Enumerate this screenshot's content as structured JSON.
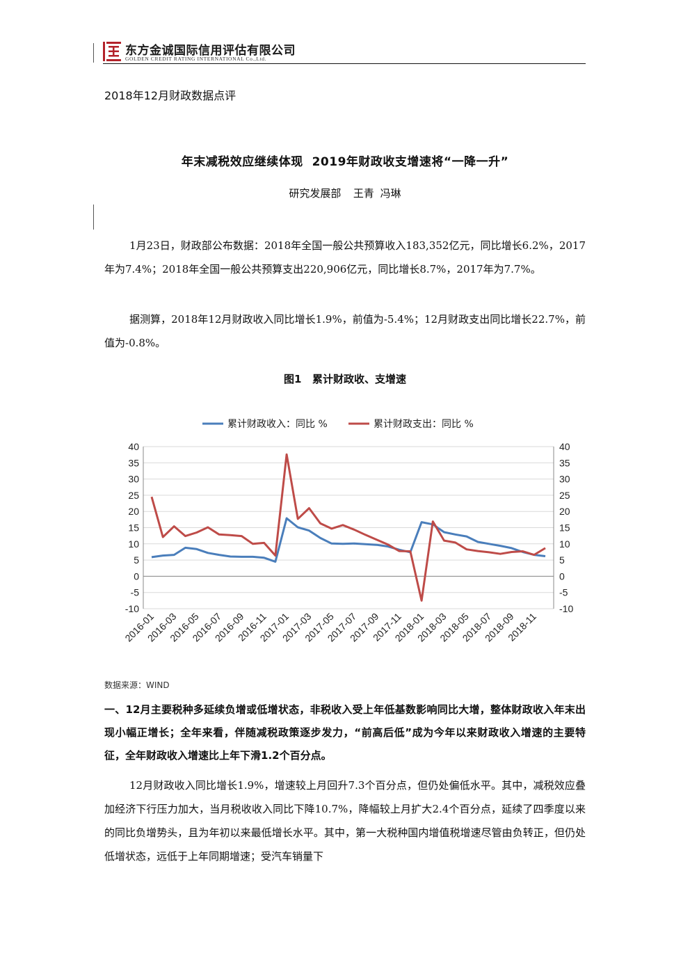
{
  "header": {
    "company_cn": "东方金诚国际信用评估有限公司",
    "company_en": "GOLDEN CREDIT RATING INTERNATIONAL Co.,Ltd.",
    "logo_color": "#b3222a"
  },
  "report_label": "2018年12月财政数据点评",
  "title": "年末减税效应继续体现  2019年财政收支增速将“一降一升”",
  "authors": "研究发展部  王青 冯琳",
  "paragraphs": [
    "1月23日，财政部公布数据：2018年全国一般公共预算收入183,352亿元，同比增长6.2%，2017年为7.4%；2018年全国一般公共预算支出220,906亿元，同比增长8.7%，2017年为7.7%。",
    "据测算，2018年12月财政收入同比增长1.9%，前值为-5.4%；12月财政支出同比增长22.7%，前值为-0.8%。"
  ],
  "figure": {
    "title": "图1   累计财政收、支增速",
    "source": "数据来源：WIND"
  },
  "chart_data": {
    "type": "line",
    "title": "",
    "xlabel": "",
    "ylabel": "",
    "ylim": [
      -10,
      40
    ],
    "yticks": [
      40,
      35,
      30,
      25,
      20,
      15,
      10,
      5,
      0,
      -5,
      -10
    ],
    "legend_position": "top",
    "grid": "horizontal",
    "x": [
      "2016-01",
      "2016-02",
      "2016-03",
      "2016-04",
      "2016-05",
      "2016-06",
      "2016-07",
      "2016-08",
      "2016-09",
      "2016-10",
      "2016-11",
      "2016-12",
      "2017-01",
      "2017-02",
      "2017-03",
      "2017-04",
      "2017-05",
      "2017-06",
      "2017-07",
      "2017-08",
      "2017-09",
      "2017-10",
      "2017-11",
      "2017-12",
      "2018-01",
      "2018-02",
      "2018-03",
      "2018-04",
      "2018-05",
      "2018-06",
      "2018-07",
      "2018-08",
      "2018-09",
      "2018-10",
      "2018-11",
      "2018-12"
    ],
    "xtick_labels": [
      "2016-01",
      "2016-03",
      "2016-05",
      "2016-07",
      "2016-09",
      "2016-11",
      "2017-01",
      "2017-03",
      "2017-05",
      "2017-07",
      "2017-09",
      "2017-11",
      "2018-01",
      "2018-03",
      "2018-05",
      "2018-07",
      "2018-09",
      "2018-11"
    ],
    "series": [
      {
        "name": "累计财政收入：同比 %",
        "color": "#4a7ebb",
        "values": [
          5.9,
          6.4,
          6.6,
          8.8,
          8.4,
          7.2,
          6.6,
          6.1,
          6.0,
          6.0,
          5.7,
          4.5,
          17.9,
          15.1,
          14.1,
          11.8,
          10.1,
          10.0,
          10.1,
          9.9,
          9.7,
          9.2,
          8.2,
          7.4,
          16.7,
          16.0,
          13.6,
          12.9,
          12.3,
          10.6,
          10.0,
          9.4,
          8.7,
          7.5,
          6.6,
          6.2
        ]
      },
      {
        "name": "累计财政支出：同比 %",
        "color": "#be4b48",
        "values": [
          24.5,
          12.1,
          15.4,
          12.4,
          13.5,
          15.1,
          12.9,
          12.7,
          12.4,
          10.0,
          10.3,
          6.4,
          37.6,
          17.7,
          21.0,
          16.3,
          14.7,
          15.8,
          14.4,
          12.8,
          11.3,
          9.8,
          7.8,
          7.7,
          -7.5,
          16.9,
          11.0,
          10.4,
          8.3,
          7.8,
          7.4,
          6.9,
          7.5,
          7.7,
          6.6,
          8.7
        ]
      }
    ]
  },
  "section1": {
    "heading": "一、12月主要税种多延续负增或低增状态，非税收入受上年低基数影响同比大增，整体财政收入年末出现小幅正增长；全年来看，伴随减税政策逐步发力，“前高后低”成为今年以来财政收入增速的主要特征，全年财政收入增速比上年下滑1.2个百分点。",
    "body": "12月财政收入同比增长1.9%，增速较上月回升7.3个百分点，但仍处偏低水平。其中，减税效应叠加经济下行压力加大，当月税收收入同比下降10.7%，降幅较上月扩大2.4个百分点，延续了四季度以来的同比负增势头，且为年初以来最低增长水平。其中，第一大税种国内增值税增速尽管由负转正，但仍处低增状态，远低于上年同期增速；受汽车销量下"
  }
}
